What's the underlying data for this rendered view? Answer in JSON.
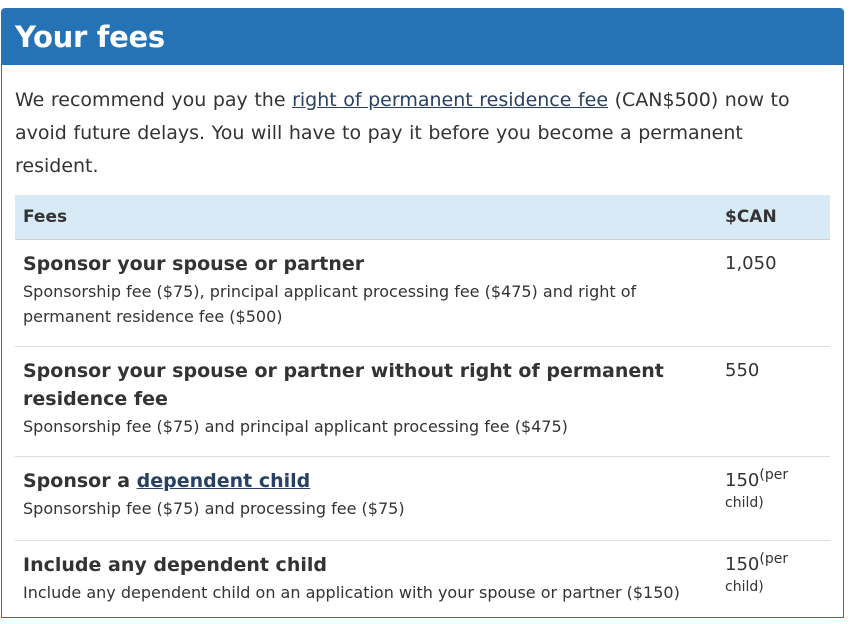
{
  "panel": {
    "title": "Your fees"
  },
  "intro": {
    "before": "We recommend you pay the ",
    "link": "right of permanent residence fee",
    "after": " (CAN$500) now to avoid future delays. You will have to pay it before you become a permanent resident."
  },
  "table": {
    "headers": {
      "fees": "Fees",
      "amount": "$CAN"
    },
    "rows": [
      {
        "name": "Sponsor your spouse or partner",
        "description": "Sponsorship fee ($75), principal applicant processing fee ($475) and right of permanent residence fee ($500)",
        "amount": "1,050",
        "amount_note": ""
      },
      {
        "name": "Sponsor your spouse or partner without right of permanent residence fee",
        "description": "Sponsorship fee ($75) and principal applicant processing fee ($475)",
        "amount": "550",
        "amount_note": ""
      },
      {
        "name_prefix": "Sponsor a ",
        "name_link": "dependent child",
        "description": "Sponsorship fee ($75) and processing fee ($75)",
        "amount": "150",
        "amount_note": "(per child)"
      },
      {
        "name": "Include any dependent child",
        "description": "Include any dependent child on an application with your spouse or partner ($150)",
        "amount": "150",
        "amount_note": "(per child)"
      }
    ]
  },
  "colors": {
    "header_blue": "#2572b4",
    "table_header_bg": "#d7eaf6",
    "link": "#284162",
    "text": "#333333"
  }
}
